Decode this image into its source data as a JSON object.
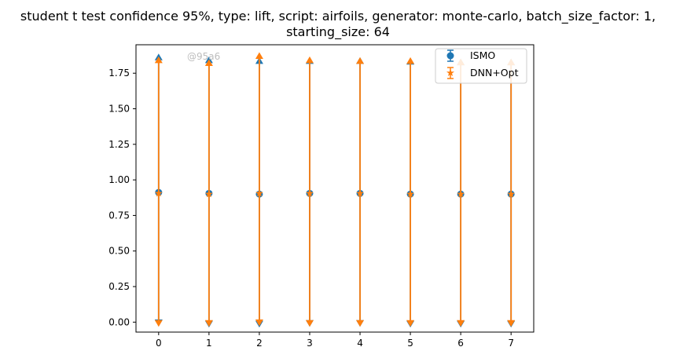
{
  "chart_data": {
    "type": "scatter",
    "title_line1": "student t test confidence 95%, type: lift, script: airfoils, generator: monte-carlo, batch_size_factor: 1,",
    "title_line2": "starting_size: 64",
    "xlabel": "",
    "ylabel": "",
    "x": [
      0,
      1,
      2,
      3,
      4,
      5,
      6,
      7
    ],
    "x_ticks": [
      "0",
      "1",
      "2",
      "3",
      "4",
      "5",
      "6",
      "7"
    ],
    "y_ticks": [
      "0.00",
      "0.25",
      "0.50",
      "0.75",
      "1.00",
      "1.25",
      "1.50",
      "1.75"
    ],
    "xlim": [
      -0.45,
      7.45
    ],
    "ylim": [
      -0.07,
      1.95
    ],
    "grid": false,
    "legend": "top-right",
    "watermark": "@95a6",
    "series": [
      {
        "name": "ISMO",
        "color": "#1f77b4",
        "marker": "circle",
        "mean": [
          0.912,
          0.905,
          0.9,
          0.905,
          0.905,
          0.9,
          0.9,
          0.9
        ],
        "lower": [
          0.0,
          -0.01,
          -0.01,
          -0.005,
          -0.005,
          -0.01,
          -0.01,
          -0.01
        ],
        "upper": [
          1.86,
          1.84,
          1.835,
          1.835,
          1.835,
          1.83,
          1.825,
          1.825
        ]
      },
      {
        "name": "DNN+Opt",
        "color": "#ff7f0e",
        "marker": "star",
        "mean": [
          0.905,
          0.9,
          0.905,
          0.905,
          0.905,
          0.9,
          0.9,
          0.9
        ],
        "lower": [
          -0.005,
          -0.005,
          0.0,
          -0.005,
          -0.005,
          -0.005,
          -0.005,
          -0.005
        ],
        "upper": [
          1.84,
          1.82,
          1.87,
          1.84,
          1.835,
          1.835,
          1.825,
          1.825
        ]
      }
    ]
  }
}
